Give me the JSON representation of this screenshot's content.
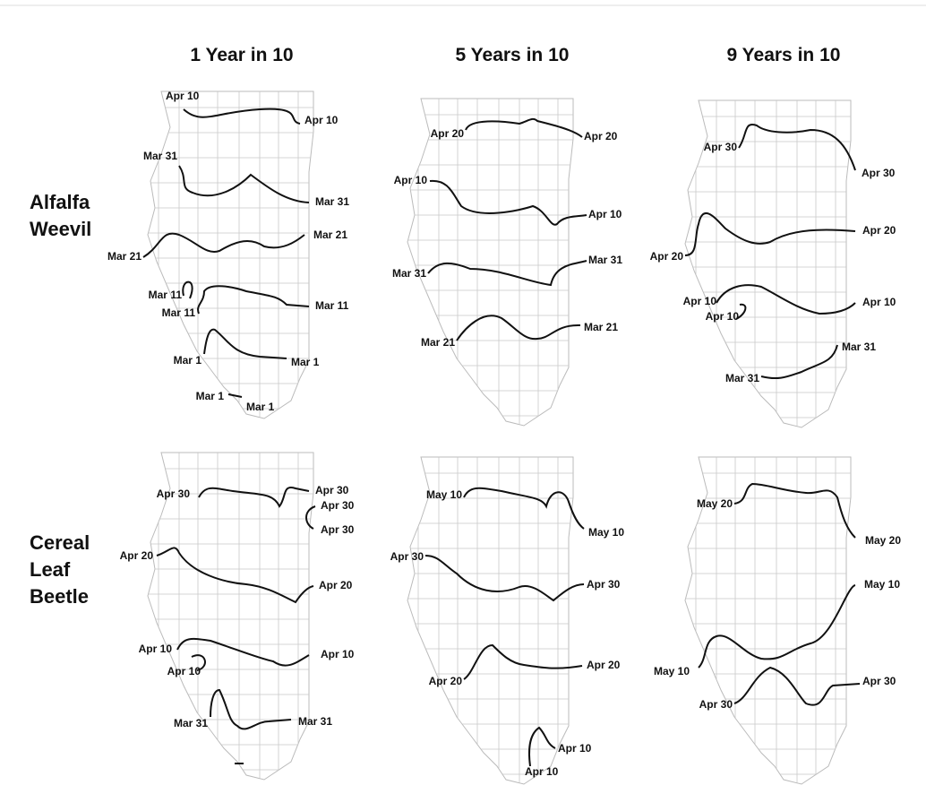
{
  "columns": [
    "1 Year in 10",
    "5 Years in 10",
    "9 Years in 10"
  ],
  "rows": [
    {
      "label": [
        "Alfalfa",
        "Weevil"
      ]
    },
    {
      "label": [
        "Cereal",
        "Leaf",
        "Beetle"
      ]
    }
  ],
  "maps": [
    {
      "labels": [
        "Apr 10",
        "Apr 10",
        "Mar 31",
        "Mar 31",
        "Mar 21",
        "Mar 21",
        "Mar 11",
        "Mar 11",
        "Mar 11",
        "Mar 1",
        "Mar 1",
        "Mar 1",
        "Mar 1"
      ]
    },
    {
      "labels": [
        "Apr 20",
        "Apr 20",
        "Apr 10",
        "Apr 10",
        "Mar 31",
        "Mar 31",
        "Mar 21",
        "Mar 21"
      ]
    },
    {
      "labels": [
        "Apr 30",
        "Apr 30",
        "Apr 20",
        "Apr 20",
        "Apr 10",
        "Apr 10",
        "Apr 10",
        "Mar 31",
        "Mar 31"
      ]
    },
    {
      "labels": [
        "Apr 30",
        "Apr 30",
        "Apr 30",
        "Apr 30",
        "Apr 20",
        "Apr 20",
        "Apr 10",
        "Apr 10",
        "Apr 10",
        "Mar 31",
        "Mar 31"
      ]
    },
    {
      "labels": [
        "May 10",
        "May 10",
        "Apr 30",
        "Apr 30",
        "Apr 20",
        "Apr 20",
        "Apr 10",
        "Apr 10"
      ]
    },
    {
      "labels": [
        "May 20",
        "May 20",
        "May 10",
        "May 10",
        "Apr 30",
        "Apr 30"
      ]
    }
  ]
}
